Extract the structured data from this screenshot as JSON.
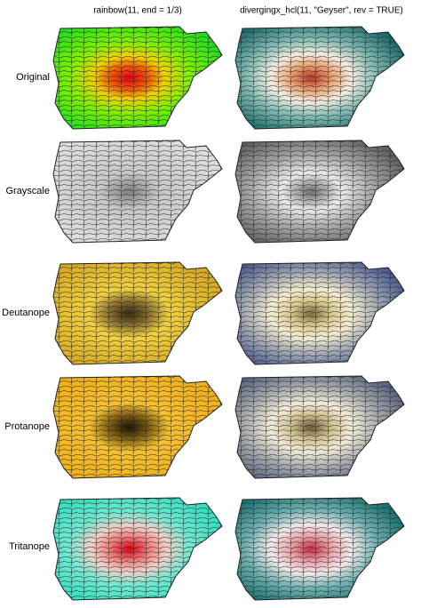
{
  "columns": [
    "rainbow(11, end = 1/3)",
    "divergingx_hcl(11, \"Geyser\", rev = TRUE)"
  ],
  "rows": [
    "Original",
    "Grayscale",
    "Deutanope",
    "Protanope",
    "Tritanope"
  ]
}
